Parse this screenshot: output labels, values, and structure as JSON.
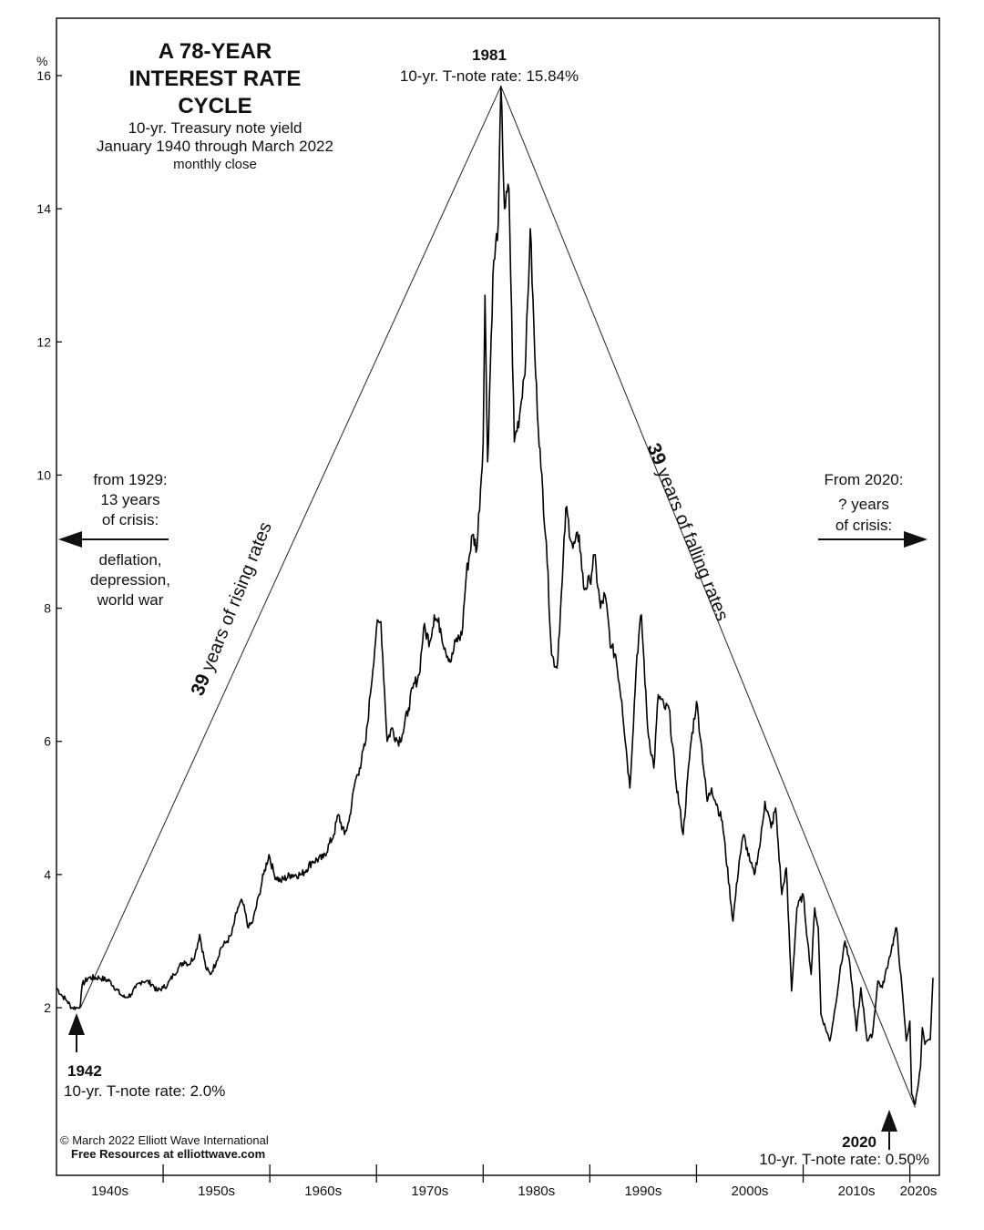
{
  "chart_data": {
    "type": "line",
    "title": [
      "A 78-YEAR",
      "INTEREST RATE",
      "CYCLE"
    ],
    "subtitle": [
      "10-yr. Treasury note yield",
      "January 1940 through March 2022"
    ],
    "subtitle_small": "monthly close",
    "y_unit_label": "%",
    "ylim": [
      0,
      16.6
    ],
    "y_ticks": [
      2,
      4,
      6,
      8,
      10,
      12,
      14,
      16
    ],
    "x_tick_labels": [
      "1940s",
      "1950s",
      "1960s",
      "1970s",
      "1980s",
      "1990s",
      "2000s",
      "2010s",
      "2020s"
    ],
    "xlim": [
      "1940-01",
      "2022-03"
    ],
    "grid": false,
    "series": [
      {
        "x": [
          "1940-01",
          "1940-06",
          "1941-01",
          "1941-06",
          "1942-01",
          "1942-04",
          "1942-06",
          "1943-01",
          "1944-01",
          "1945-01",
          "1946-01",
          "1946-06",
          "1947-01",
          "1947-06",
          "1948-01",
          "1948-06",
          "1949-01",
          "1949-06",
          "1950-01",
          "1950-06",
          "1951-01",
          "1951-06",
          "1952-01",
          "1952-06",
          "1953-01",
          "1953-06",
          "1954-01",
          "1954-06",
          "1955-01",
          "1955-06",
          "1956-01",
          "1956-06",
          "1957-01",
          "1957-06",
          "1958-01",
          "1958-06",
          "1959-01",
          "1959-06",
          "1959-12",
          "1960-06",
          "1961-01",
          "1962-01",
          "1963-01",
          "1964-01",
          "1965-01",
          "1966-01",
          "1966-06",
          "1967-01",
          "1967-06",
          "1968-01",
          "1968-06",
          "1969-01",
          "1969-06",
          "1970-01",
          "1970-06",
          "1971-01",
          "1971-06",
          "1972-01",
          "1972-06",
          "1973-01",
          "1973-06",
          "1974-01",
          "1974-06",
          "1975-01",
          "1975-06",
          "1976-01",
          "1976-06",
          "1977-01",
          "1977-06",
          "1978-01",
          "1978-06",
          "1979-01",
          "1979-06",
          "1980-01",
          "1980-03",
          "1980-06",
          "1980-12",
          "1981-06",
          "1981-09",
          "1982-01",
          "1982-06",
          "1982-12",
          "1983-06",
          "1984-01",
          "1984-06",
          "1984-12",
          "1985-06",
          "1985-12",
          "1986-06",
          "1986-12",
          "1987-06",
          "1987-10",
          "1988-06",
          "1989-01",
          "1989-06",
          "1990-01",
          "1990-06",
          "1991-01",
          "1991-06",
          "1992-01",
          "1992-06",
          "1993-01",
          "1993-10",
          "1994-06",
          "1994-11",
          "1995-06",
          "1996-01",
          "1996-06",
          "1997-01",
          "1997-06",
          "1998-01",
          "1998-10",
          "1999-06",
          "2000-01",
          "2000-06",
          "2001-01",
          "2001-06",
          "2002-01",
          "2002-06",
          "2003-06",
          "2004-01",
          "2004-06",
          "2005-01",
          "2005-06",
          "2006-01",
          "2006-06",
          "2007-01",
          "2007-06",
          "2008-01",
          "2008-06",
          "2008-12",
          "2009-06",
          "2010-01",
          "2010-06",
          "2010-10",
          "2011-02",
          "2011-06",
          "2011-09",
          "2012-07",
          "2013-01",
          "2013-06",
          "2013-12",
          "2014-06",
          "2015-01",
          "2015-06",
          "2016-01",
          "2016-07",
          "2017-01",
          "2017-06",
          "2018-01",
          "2018-10",
          "2019-06",
          "2019-09",
          "2020-01",
          "2020-03",
          "2020-07",
          "2021-01",
          "2021-03",
          "2021-06",
          "2021-12",
          "2022-03"
        ],
        "values": [
          2.3,
          2.2,
          2.1,
          2.0,
          2.0,
          2.05,
          2.35,
          2.45,
          2.45,
          2.4,
          2.2,
          2.15,
          2.2,
          2.3,
          2.4,
          2.4,
          2.35,
          2.25,
          2.3,
          2.35,
          2.5,
          2.6,
          2.7,
          2.65,
          2.8,
          3.1,
          2.6,
          2.5,
          2.7,
          2.9,
          3.0,
          3.1,
          3.5,
          3.6,
          3.2,
          3.3,
          3.7,
          4.0,
          4.3,
          4.0,
          3.9,
          4.0,
          4.0,
          4.2,
          4.25,
          4.6,
          4.9,
          4.6,
          4.8,
          5.4,
          5.6,
          6.0,
          6.7,
          7.7,
          7.8,
          6.0,
          6.2,
          6.0,
          6.1,
          6.5,
          6.8,
          7.0,
          7.7,
          7.5,
          7.9,
          7.7,
          7.4,
          7.2,
          7.5,
          7.6,
          8.5,
          9.1,
          8.9,
          10.5,
          12.7,
          10.2,
          13.0,
          13.8,
          15.84,
          14.0,
          14.3,
          10.5,
          10.9,
          11.8,
          13.7,
          11.5,
          10.1,
          9.0,
          7.3,
          7.1,
          8.4,
          9.5,
          8.9,
          9.1,
          8.3,
          8.4,
          8.8,
          8.0,
          8.2,
          7.4,
          7.3,
          6.6,
          5.3,
          7.3,
          7.9,
          6.2,
          5.6,
          6.7,
          6.5,
          6.5,
          5.5,
          4.6,
          5.9,
          6.6,
          6.0,
          5.1,
          5.3,
          5.0,
          4.8,
          3.3,
          4.2,
          4.6,
          4.2,
          4.0,
          4.5,
          5.1,
          4.7,
          5.0,
          3.7,
          4.1,
          2.25,
          3.5,
          3.7,
          3.0,
          2.5,
          3.5,
          3.2,
          1.9,
          1.5,
          2.0,
          2.5,
          3.0,
          2.6,
          1.65,
          2.3,
          1.5,
          1.6,
          2.4,
          2.3,
          2.7,
          3.2,
          2.0,
          1.5,
          1.8,
          0.7,
          0.55,
          1.1,
          1.7,
          1.45,
          1.52,
          2.45
        ]
      }
    ],
    "trend_lines": [
      {
        "from": [
          "1942-04",
          2.0
        ],
        "to": [
          "1981-09",
          15.84
        ]
      },
      {
        "from": [
          "1981-09",
          15.84
        ],
        "to": [
          "2020-07",
          0.5
        ]
      }
    ],
    "annotations": {
      "peak": {
        "year": "1981",
        "label": "10-yr. T-note rate: 15.84%"
      },
      "low1942": {
        "year": "1942",
        "label": "10-yr. T-note rate: 2.0%"
      },
      "low2020": {
        "year": "2020",
        "label": "10-yr. T-note rate: 0.50%"
      },
      "rising": {
        "bold": "39",
        "rest": " years of rising rates"
      },
      "falling": {
        "bold": "39",
        "rest": " years of falling rates"
      },
      "left_note": [
        "from 1929:",
        "13 years",
        "of crisis:",
        "deflation,",
        "depression,",
        "world war"
      ],
      "right_note": [
        "From 2020:",
        "? years",
        "of crisis:"
      ]
    }
  },
  "footer": {
    "copyright": "© March 2022  Elliott Wave International",
    "resources": "Free Resources at elliottwave.com"
  }
}
